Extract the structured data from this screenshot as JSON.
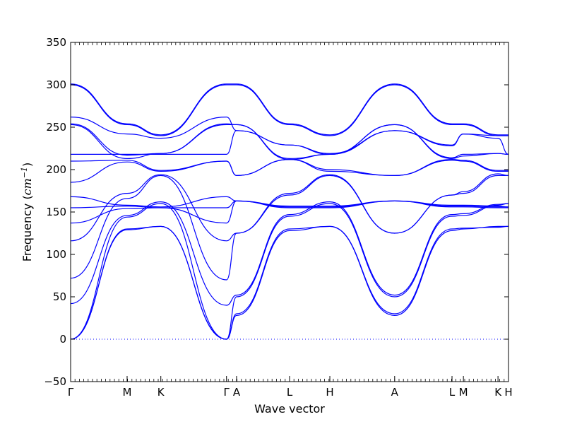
{
  "chart_data": {
    "type": "line",
    "title": "",
    "xlabel": "Wave vector",
    "ylabel": {
      "prefix": "Frequency (",
      "unit": "cm",
      "exponent": "−1",
      "suffix": ")"
    },
    "ylim": [
      -50,
      350
    ],
    "xlim": [
      0,
      1
    ],
    "yticks": [
      -50,
      0,
      50,
      100,
      150,
      200,
      250,
      300,
      350
    ],
    "ytick_labels": [
      "−50",
      "0",
      "50",
      "100",
      "150",
      "200",
      "250",
      "300",
      "350"
    ],
    "grid": false,
    "line_color": "#0000ff",
    "zero_line": {
      "y": 0,
      "style": "dotted",
      "color": "#0000ff"
    },
    "high_symmetry_points": [
      {
        "label": "Γ",
        "x": 0.0
      },
      {
        "label": "M",
        "x": 0.129
      },
      {
        "label": "K",
        "x": 0.206
      },
      {
        "label": "Γ",
        "x": 0.356
      },
      {
        "label": "A",
        "x": 0.379
      },
      {
        "label": "L",
        "x": 0.5
      },
      {
        "label": "H",
        "x": 0.592
      },
      {
        "label": "A",
        "x": 0.74
      },
      {
        "label": "L",
        "x": 0.871
      },
      {
        "label": "M",
        "x": 0.897
      },
      {
        "label": "K",
        "x": 0.976
      },
      {
        "label": "H",
        "x": 1.0
      }
    ],
    "series": [
      {
        "values": [
          [
            0,
            0
          ],
          [
            0.129,
            129
          ],
          [
            0.206,
            133
          ],
          [
            0.356,
            0
          ],
          [
            0.379,
            28
          ],
          [
            0.5,
            128
          ],
          [
            0.592,
            133
          ],
          [
            0.74,
            28
          ],
          [
            0.871,
            128
          ],
          [
            0.897,
            130
          ],
          [
            0.976,
            133
          ],
          [
            1.0,
            133
          ]
        ]
      },
      {
        "values": [
          [
            0,
            0
          ],
          [
            0.129,
            130
          ],
          [
            0.206,
            133
          ],
          [
            0.356,
            0
          ],
          [
            0.379,
            30
          ],
          [
            0.5,
            130
          ],
          [
            0.592,
            133
          ],
          [
            0.74,
            30
          ],
          [
            0.871,
            130
          ],
          [
            0.897,
            131
          ],
          [
            0.976,
            132
          ],
          [
            1.0,
            133
          ]
        ]
      },
      {
        "values": [
          [
            0,
            0
          ],
          [
            0.129,
            144
          ],
          [
            0.206,
            160
          ],
          [
            0.356,
            0
          ],
          [
            0.379,
            50
          ],
          [
            0.5,
            145
          ],
          [
            0.592,
            160
          ],
          [
            0.74,
            50
          ],
          [
            0.871,
            145
          ],
          [
            0.897,
            146
          ],
          [
            0.976,
            158
          ],
          [
            1.0,
            160
          ]
        ]
      },
      {
        "values": [
          [
            0,
            42
          ],
          [
            0.129,
            146
          ],
          [
            0.206,
            162
          ],
          [
            0.356,
            40
          ],
          [
            0.379,
            52
          ],
          [
            0.5,
            147
          ],
          [
            0.592,
            162
          ],
          [
            0.74,
            52
          ],
          [
            0.871,
            147
          ],
          [
            0.897,
            148
          ],
          [
            0.976,
            159
          ],
          [
            1.0,
            160
          ]
        ]
      },
      {
        "values": [
          [
            0,
            72
          ],
          [
            0.129,
            166
          ],
          [
            0.206,
            193
          ],
          [
            0.356,
            70
          ],
          [
            0.379,
            125
          ],
          [
            0.5,
            170
          ],
          [
            0.592,
            193
          ],
          [
            0.74,
            125
          ],
          [
            0.871,
            170
          ],
          [
            0.897,
            172
          ],
          [
            0.976,
            193
          ],
          [
            1.0,
            193
          ]
        ]
      },
      {
        "values": [
          [
            0,
            116
          ],
          [
            0.129,
            172
          ],
          [
            0.206,
            194
          ],
          [
            0.356,
            116
          ],
          [
            0.379,
            125
          ],
          [
            0.5,
            172
          ],
          [
            0.592,
            194
          ],
          [
            0.74,
            125
          ],
          [
            0.871,
            170
          ],
          [
            0.897,
            174
          ],
          [
            0.976,
            195
          ],
          [
            1.0,
            193
          ]
        ]
      },
      {
        "values": [
          [
            0,
            137
          ],
          [
            0.129,
            154
          ],
          [
            0.206,
            155
          ],
          [
            0.356,
            137
          ],
          [
            0.379,
            163
          ],
          [
            0.5,
            155
          ],
          [
            0.592,
            155
          ],
          [
            0.74,
            163
          ],
          [
            0.871,
            156
          ],
          [
            0.897,
            156
          ],
          [
            0.976,
            155
          ],
          [
            1.0,
            155
          ]
        ]
      },
      {
        "values": [
          [
            0,
            155
          ],
          [
            0.129,
            157
          ],
          [
            0.206,
            155
          ],
          [
            0.356,
            155
          ],
          [
            0.379,
            163
          ],
          [
            0.5,
            156
          ],
          [
            0.592,
            156
          ],
          [
            0.74,
            163
          ],
          [
            0.871,
            157
          ],
          [
            0.897,
            157
          ],
          [
            0.976,
            156
          ],
          [
            1.0,
            156
          ]
        ]
      },
      {
        "values": [
          [
            0,
            168
          ],
          [
            0.129,
            158
          ],
          [
            0.206,
            156
          ],
          [
            0.356,
            168
          ],
          [
            0.379,
            163
          ],
          [
            0.5,
            157
          ],
          [
            0.592,
            157
          ],
          [
            0.74,
            163
          ],
          [
            0.871,
            158
          ],
          [
            0.897,
            158
          ],
          [
            0.976,
            157
          ],
          [
            1.0,
            156
          ]
        ]
      },
      {
        "values": [
          [
            0,
            185
          ],
          [
            0.129,
            209
          ],
          [
            0.206,
            198
          ],
          [
            0.356,
            210
          ],
          [
            0.379,
            193
          ],
          [
            0.5,
            212
          ],
          [
            0.592,
            198
          ],
          [
            0.74,
            193
          ],
          [
            0.871,
            211
          ],
          [
            0.897,
            210
          ],
          [
            0.976,
            198
          ],
          [
            1.0,
            198
          ]
        ]
      },
      {
        "values": [
          [
            0,
            210
          ],
          [
            0.129,
            211
          ],
          [
            0.206,
            199
          ],
          [
            0.356,
            210
          ],
          [
            0.379,
            193
          ],
          [
            0.5,
            212
          ],
          [
            0.592,
            200
          ],
          [
            0.74,
            193
          ],
          [
            0.871,
            212
          ],
          [
            0.897,
            211
          ],
          [
            0.976,
            199
          ],
          [
            1.0,
            199
          ]
        ]
      },
      {
        "values": [
          [
            0,
            218
          ],
          [
            0.129,
            218
          ],
          [
            0.206,
            218
          ],
          [
            0.356,
            218
          ],
          [
            0.379,
            246
          ],
          [
            0.5,
            229
          ],
          [
            0.592,
            218
          ],
          [
            0.74,
            246
          ],
          [
            0.871,
            228
          ],
          [
            0.897,
            242
          ],
          [
            0.976,
            237
          ],
          [
            1.0,
            218
          ]
        ]
      },
      {
        "values": [
          [
            0,
            253
          ],
          [
            0.129,
            213
          ],
          [
            0.206,
            219
          ],
          [
            0.356,
            253
          ],
          [
            0.379,
            253
          ],
          [
            0.5,
            212
          ],
          [
            0.592,
            218
          ],
          [
            0.74,
            253
          ],
          [
            0.871,
            213
          ],
          [
            0.897,
            216
          ],
          [
            0.976,
            219
          ],
          [
            1.0,
            218
          ]
        ]
      },
      {
        "values": [
          [
            0,
            254
          ],
          [
            0.129,
            217
          ],
          [
            0.206,
            219
          ],
          [
            0.356,
            254
          ],
          [
            0.379,
            253
          ],
          [
            0.5,
            213
          ],
          [
            0.592,
            218
          ],
          [
            0.74,
            253
          ],
          [
            0.871,
            214
          ],
          [
            0.897,
            218
          ],
          [
            0.976,
            219
          ],
          [
            1.0,
            218
          ]
        ]
      },
      {
        "values": [
          [
            0,
            262
          ],
          [
            0.129,
            242
          ],
          [
            0.206,
            237
          ],
          [
            0.356,
            262
          ],
          [
            0.379,
            246
          ],
          [
            0.5,
            229
          ],
          [
            0.592,
            219
          ],
          [
            0.74,
            246
          ],
          [
            0.871,
            229
          ],
          [
            0.897,
            242
          ],
          [
            0.976,
            240
          ],
          [
            1.0,
            240
          ]
        ]
      },
      {
        "values": [
          [
            0,
            300
          ],
          [
            0.129,
            253
          ],
          [
            0.206,
            240
          ],
          [
            0.356,
            300
          ],
          [
            0.379,
            300
          ],
          [
            0.5,
            253
          ],
          [
            0.592,
            240
          ],
          [
            0.74,
            300
          ],
          [
            0.871,
            253
          ],
          [
            0.897,
            253
          ],
          [
            0.976,
            240
          ],
          [
            1.0,
            240
          ]
        ]
      },
      {
        "values": [
          [
            0,
            301
          ],
          [
            0.129,
            254
          ],
          [
            0.206,
            241
          ],
          [
            0.356,
            301
          ],
          [
            0.379,
            301
          ],
          [
            0.5,
            254
          ],
          [
            0.592,
            241
          ],
          [
            0.74,
            301
          ],
          [
            0.871,
            254
          ],
          [
            0.897,
            254
          ],
          [
            0.976,
            241
          ],
          [
            1.0,
            241
          ]
        ]
      }
    ]
  }
}
